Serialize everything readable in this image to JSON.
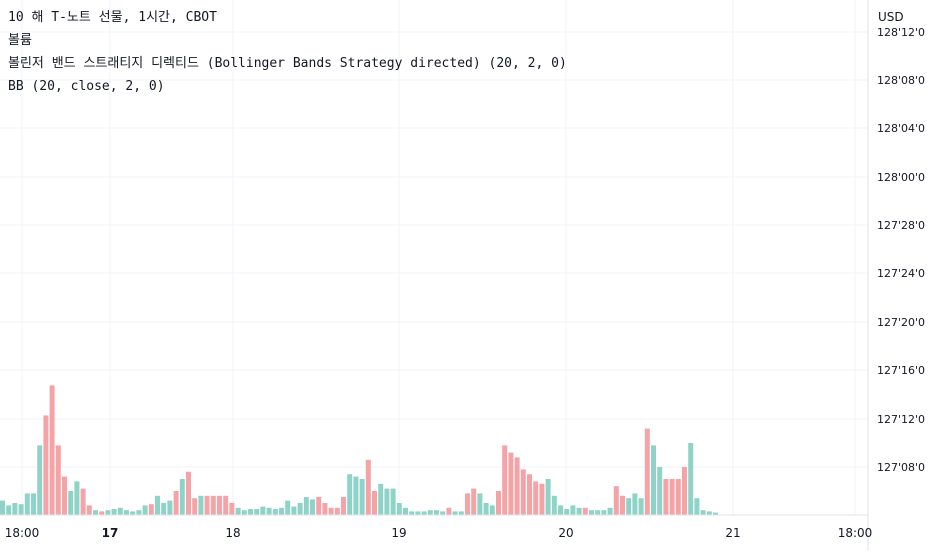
{
  "legend": {
    "symbol_line": "10 해 T-노트 선물, 1시간, CBOT",
    "volume_label": "볼륨",
    "strategy_label": "볼린저 밴드 스트래티지 디렉티드 (Bollinger Bands Strategy directed) (20, 2, 0)",
    "bb_label": "BB (20, close, 2, 0)"
  },
  "price_axis": {
    "currency": "USD",
    "ticks": [
      "128'12'0",
      "128'08'0",
      "128'04'0",
      "128'00'0",
      "127'28'0",
      "127'24'0",
      "127'20'0",
      "127'16'0",
      "127'12'0",
      "127'08'0"
    ]
  },
  "time_axis": {
    "ticks": [
      {
        "label": "18:00",
        "bold": false
      },
      {
        "label": "17",
        "bold": true
      },
      {
        "label": "18",
        "bold": false
      },
      {
        "label": "19",
        "bold": false
      },
      {
        "label": "20",
        "bold": false
      },
      {
        "label": "21",
        "bold": false
      },
      {
        "label": "18:00",
        "bold": false
      }
    ]
  },
  "colors": {
    "up": "#8fd3c8",
    "down": "#f4a3a6",
    "grid": "#f0f3fa",
    "axis_text": "#131722"
  },
  "chart_data": {
    "type": "bar",
    "title": "10 해 T-노트 선물, 1시간, CBOT",
    "series_name": "볼륨",
    "bars": [
      {
        "v": 12,
        "d": "up"
      },
      {
        "v": 8,
        "d": "up"
      },
      {
        "v": 10,
        "d": "up"
      },
      {
        "v": 9,
        "d": "up"
      },
      {
        "v": 18,
        "d": "up"
      },
      {
        "v": 18,
        "d": "up"
      },
      {
        "v": 58,
        "d": "up"
      },
      {
        "v": 83,
        "d": "down"
      },
      {
        "v": 108,
        "d": "down"
      },
      {
        "v": 58,
        "d": "down"
      },
      {
        "v": 32,
        "d": "down"
      },
      {
        "v": 20,
        "d": "up"
      },
      {
        "v": 28,
        "d": "up"
      },
      {
        "v": 22,
        "d": "down"
      },
      {
        "v": 8,
        "d": "down"
      },
      {
        "v": 4,
        "d": "up"
      },
      {
        "v": 3,
        "d": "down"
      },
      {
        "v": 4,
        "d": "up"
      },
      {
        "v": 5,
        "d": "up"
      },
      {
        "v": 6,
        "d": "up"
      },
      {
        "v": 4,
        "d": "up"
      },
      {
        "v": 3,
        "d": "up"
      },
      {
        "v": 4,
        "d": "up"
      },
      {
        "v": 8,
        "d": "up"
      },
      {
        "v": 9,
        "d": "down"
      },
      {
        "v": 16,
        "d": "up"
      },
      {
        "v": 10,
        "d": "up"
      },
      {
        "v": 12,
        "d": "up"
      },
      {
        "v": 20,
        "d": "down"
      },
      {
        "v": 30,
        "d": "up"
      },
      {
        "v": 36,
        "d": "down"
      },
      {
        "v": 14,
        "d": "down"
      },
      {
        "v": 16,
        "d": "up"
      },
      {
        "v": 16,
        "d": "down"
      },
      {
        "v": 16,
        "d": "down"
      },
      {
        "v": 16,
        "d": "down"
      },
      {
        "v": 16,
        "d": "down"
      },
      {
        "v": 10,
        "d": "down"
      },
      {
        "v": 6,
        "d": "up"
      },
      {
        "v": 4,
        "d": "up"
      },
      {
        "v": 5,
        "d": "up"
      },
      {
        "v": 5,
        "d": "up"
      },
      {
        "v": 7,
        "d": "up"
      },
      {
        "v": 6,
        "d": "up"
      },
      {
        "v": 5,
        "d": "up"
      },
      {
        "v": 6,
        "d": "up"
      },
      {
        "v": 12,
        "d": "up"
      },
      {
        "v": 7,
        "d": "up"
      },
      {
        "v": 10,
        "d": "up"
      },
      {
        "v": 15,
        "d": "up"
      },
      {
        "v": 13,
        "d": "up"
      },
      {
        "v": 15,
        "d": "down"
      },
      {
        "v": 10,
        "d": "down"
      },
      {
        "v": 6,
        "d": "down"
      },
      {
        "v": 6,
        "d": "down"
      },
      {
        "v": 15,
        "d": "down"
      },
      {
        "v": 34,
        "d": "up"
      },
      {
        "v": 32,
        "d": "up"
      },
      {
        "v": 30,
        "d": "up"
      },
      {
        "v": 46,
        "d": "down"
      },
      {
        "v": 20,
        "d": "down"
      },
      {
        "v": 26,
        "d": "up"
      },
      {
        "v": 22,
        "d": "up"
      },
      {
        "v": 22,
        "d": "up"
      },
      {
        "v": 10,
        "d": "up"
      },
      {
        "v": 6,
        "d": "up"
      },
      {
        "v": 3,
        "d": "up"
      },
      {
        "v": 3,
        "d": "up"
      },
      {
        "v": 3,
        "d": "up"
      },
      {
        "v": 4,
        "d": "up"
      },
      {
        "v": 4,
        "d": "up"
      },
      {
        "v": 3,
        "d": "up"
      },
      {
        "v": 6,
        "d": "down"
      },
      {
        "v": 3,
        "d": "up"
      },
      {
        "v": 3,
        "d": "up"
      },
      {
        "v": 18,
        "d": "down"
      },
      {
        "v": 22,
        "d": "down"
      },
      {
        "v": 18,
        "d": "up"
      },
      {
        "v": 10,
        "d": "up"
      },
      {
        "v": 8,
        "d": "up"
      },
      {
        "v": 20,
        "d": "down"
      },
      {
        "v": 58,
        "d": "down"
      },
      {
        "v": 52,
        "d": "down"
      },
      {
        "v": 48,
        "d": "down"
      },
      {
        "v": 38,
        "d": "down"
      },
      {
        "v": 34,
        "d": "down"
      },
      {
        "v": 28,
        "d": "down"
      },
      {
        "v": 26,
        "d": "down"
      },
      {
        "v": 30,
        "d": "up"
      },
      {
        "v": 16,
        "d": "up"
      },
      {
        "v": 8,
        "d": "up"
      },
      {
        "v": 5,
        "d": "up"
      },
      {
        "v": 8,
        "d": "up"
      },
      {
        "v": 6,
        "d": "up"
      },
      {
        "v": 6,
        "d": "down"
      },
      {
        "v": 4,
        "d": "up"
      },
      {
        "v": 4,
        "d": "up"
      },
      {
        "v": 4,
        "d": "up"
      },
      {
        "v": 6,
        "d": "up"
      },
      {
        "v": 24,
        "d": "down"
      },
      {
        "v": 16,
        "d": "down"
      },
      {
        "v": 14,
        "d": "up"
      },
      {
        "v": 18,
        "d": "up"
      },
      {
        "v": 14,
        "d": "up"
      },
      {
        "v": 72,
        "d": "down"
      },
      {
        "v": 58,
        "d": "up"
      },
      {
        "v": 40,
        "d": "up"
      },
      {
        "v": 30,
        "d": "down"
      },
      {
        "v": 30,
        "d": "down"
      },
      {
        "v": 30,
        "d": "down"
      },
      {
        "v": 40,
        "d": "down"
      },
      {
        "v": 60,
        "d": "up"
      },
      {
        "v": 14,
        "d": "up"
      },
      {
        "v": 4,
        "d": "up"
      },
      {
        "v": 3,
        "d": "up"
      },
      {
        "v": 2,
        "d": "up"
      }
    ]
  }
}
